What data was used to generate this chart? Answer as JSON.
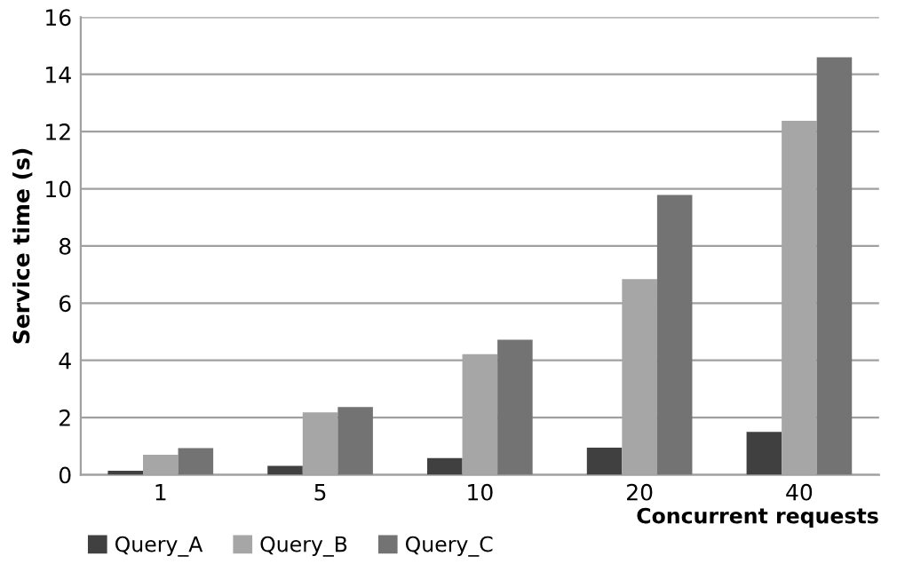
{
  "chart_data": {
    "type": "bar",
    "xlabel": "Concurrent requests",
    "ylabel": "Service time (s)",
    "categories": [
      "1",
      "5",
      "10",
      "20",
      "40"
    ],
    "series": [
      {
        "name": "Query_A",
        "color": "#404040",
        "values": [
          0.14,
          0.31,
          0.58,
          0.95,
          1.5
        ]
      },
      {
        "name": "Query_B",
        "color": "#a6a6a6",
        "values": [
          0.7,
          2.18,
          4.22,
          6.84,
          12.38
        ]
      },
      {
        "name": "Query_C",
        "color": "#737373",
        "values": [
          0.93,
          2.37,
          4.72,
          9.78,
          14.6
        ]
      }
    ],
    "ylim": [
      0,
      16
    ],
    "yticks": [
      0,
      2,
      4,
      6,
      8,
      10,
      12,
      14,
      16
    ],
    "grid": "y",
    "legend": "bottom left"
  }
}
